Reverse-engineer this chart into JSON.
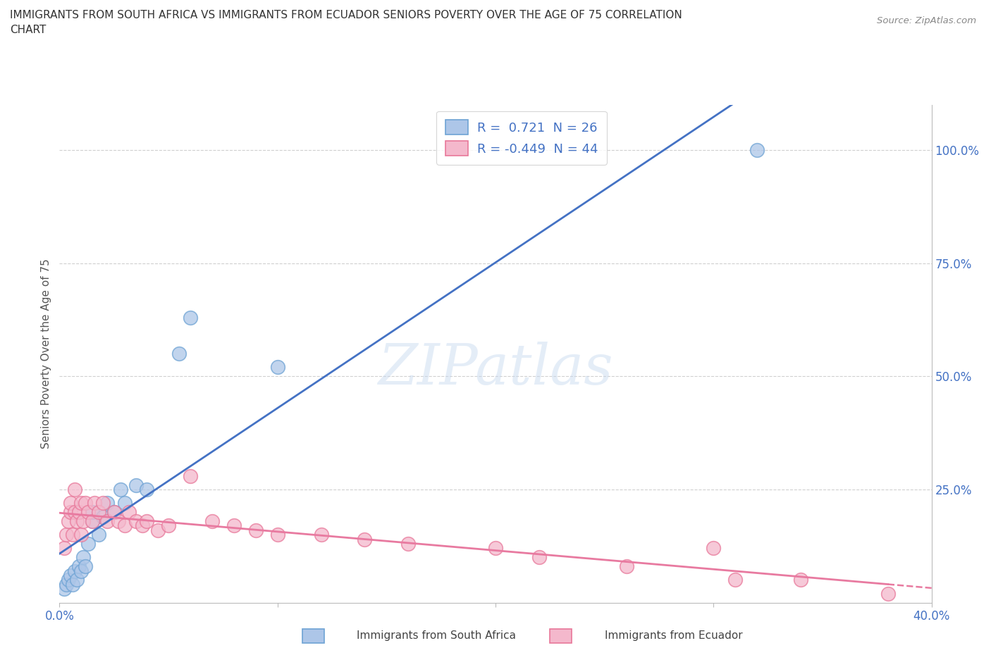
{
  "title_line1": "IMMIGRANTS FROM SOUTH AFRICA VS IMMIGRANTS FROM ECUADOR SENIORS POVERTY OVER THE AGE OF 75 CORRELATION",
  "title_line2": "CHART",
  "source": "Source: ZipAtlas.com",
  "ylabel": "Seniors Poverty Over the Age of 75",
  "xlim": [
    0,
    0.4
  ],
  "ylim": [
    0,
    1.1
  ],
  "blue_R": 0.721,
  "blue_N": 26,
  "pink_R": -0.449,
  "pink_N": 44,
  "blue_color": "#adc6e8",
  "pink_color": "#f4b8cc",
  "blue_edge_color": "#6ea3d4",
  "pink_edge_color": "#e8789a",
  "blue_line_color": "#4472c4",
  "pink_line_color": "#e87aa0",
  "watermark": "ZIPatlas",
  "legend_label_blue": "Immigrants from South Africa",
  "legend_label_pink": "Immigrants from Ecuador",
  "blue_scatter_x": [
    0.002,
    0.003,
    0.004,
    0.005,
    0.006,
    0.007,
    0.008,
    0.009,
    0.01,
    0.011,
    0.012,
    0.013,
    0.015,
    0.015,
    0.018,
    0.02,
    0.022,
    0.025,
    0.028,
    0.03,
    0.035,
    0.04,
    0.055,
    0.06,
    0.1,
    0.32
  ],
  "blue_scatter_y": [
    0.03,
    0.04,
    0.05,
    0.06,
    0.04,
    0.07,
    0.05,
    0.08,
    0.07,
    0.1,
    0.08,
    0.13,
    0.18,
    0.2,
    0.15,
    0.19,
    0.22,
    0.2,
    0.25,
    0.22,
    0.26,
    0.25,
    0.55,
    0.63,
    0.52,
    1.0
  ],
  "pink_scatter_x": [
    0.002,
    0.003,
    0.004,
    0.005,
    0.005,
    0.006,
    0.007,
    0.007,
    0.008,
    0.009,
    0.01,
    0.01,
    0.011,
    0.012,
    0.013,
    0.015,
    0.016,
    0.018,
    0.02,
    0.022,
    0.025,
    0.027,
    0.03,
    0.032,
    0.035,
    0.038,
    0.04,
    0.045,
    0.05,
    0.06,
    0.07,
    0.08,
    0.09,
    0.1,
    0.12,
    0.14,
    0.16,
    0.2,
    0.22,
    0.26,
    0.3,
    0.31,
    0.34,
    0.38
  ],
  "pink_scatter_y": [
    0.12,
    0.15,
    0.18,
    0.2,
    0.22,
    0.15,
    0.2,
    0.25,
    0.18,
    0.2,
    0.15,
    0.22,
    0.18,
    0.22,
    0.2,
    0.18,
    0.22,
    0.2,
    0.22,
    0.18,
    0.2,
    0.18,
    0.17,
    0.2,
    0.18,
    0.17,
    0.18,
    0.16,
    0.17,
    0.28,
    0.18,
    0.17,
    0.16,
    0.15,
    0.15,
    0.14,
    0.13,
    0.12,
    0.1,
    0.08,
    0.12,
    0.05,
    0.05,
    0.02
  ]
}
